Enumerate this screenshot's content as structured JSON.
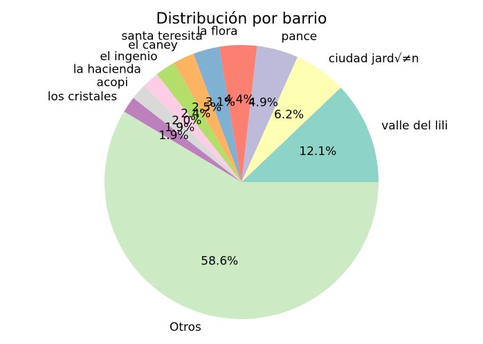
{
  "chart_data": {
    "type": "pie",
    "title": "Distribución por barrio",
    "slices": [
      {
        "label": "valle del lili",
        "pct_label": "12.1%",
        "value": 12.1,
        "color": "#8dd3c7"
      },
      {
        "label": "ciudad jard√≠n",
        "pct_label": "6.2%",
        "value": 6.2,
        "color": "#ffffb3"
      },
      {
        "label": "pance",
        "pct_label": "4.9%",
        "value": 4.9,
        "color": "#bebada"
      },
      {
        "label": "la flora",
        "pct_label": "4.4%",
        "value": 4.4,
        "color": "#fb8072"
      },
      {
        "label": "santa teresita",
        "pct_label": "3.1%",
        "value": 3.1,
        "color": "#80b1d3"
      },
      {
        "label": "el caney",
        "pct_label": "2.5%",
        "value": 2.5,
        "color": "#fdb462"
      },
      {
        "label": "el ingenio",
        "pct_label": "2.4%",
        "value": 2.4,
        "color": "#b3de69"
      },
      {
        "label": "la hacienda",
        "pct_label": "2.0%",
        "value": 2.0,
        "color": "#fccde5"
      },
      {
        "label": "acopi",
        "pct_label": "1.9%",
        "value": 1.9,
        "color": "#d9d9d9"
      },
      {
        "label": "los cristales",
        "pct_label": "1.9%",
        "value": 1.9,
        "color": "#bc80bd"
      },
      {
        "label": "Otros",
        "pct_label": "58.6%",
        "value": 58.6,
        "color": "#ccebc5"
      }
    ],
    "start_angle_deg": 0,
    "direction": "counterclockwise"
  }
}
